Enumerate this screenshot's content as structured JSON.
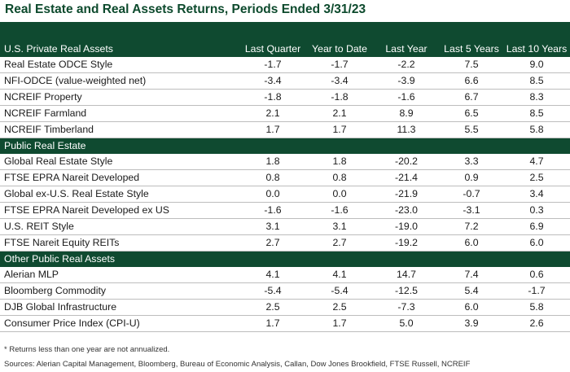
{
  "title": "Real Estate and Real Assets Returns, Periods Ended 3/31/23",
  "columns": [
    "Last Quarter",
    "Year to Date",
    "Last Year",
    "Last 5 Years",
    "Last 10 Years"
  ],
  "sections": [
    {
      "name": "U.S. Private Real Assets",
      "rows": [
        {
          "name": "Real Estate ODCE Style",
          "values": [
            "-1.7",
            "-1.7",
            "-2.2",
            "7.5",
            "9.0"
          ]
        },
        {
          "name": "NFI-ODCE (value-weighted net)",
          "values": [
            "-3.4",
            "-3.4",
            "-3.9",
            "6.6",
            "8.5"
          ]
        },
        {
          "name": "NCREIF Property",
          "values": [
            "-1.8",
            "-1.8",
            "-1.6",
            "6.7",
            "8.3"
          ]
        },
        {
          "name": "NCREIF Farmland",
          "values": [
            "2.1",
            "2.1",
            "8.9",
            "6.5",
            "8.5"
          ]
        },
        {
          "name": "NCREIF Timberland",
          "values": [
            "1.7",
            "1.7",
            "11.3",
            "5.5",
            "5.8"
          ]
        }
      ]
    },
    {
      "name": "Public Real Estate",
      "rows": [
        {
          "name": "Global Real Estate Style",
          "values": [
            "1.8",
            "1.8",
            "-20.2",
            "3.3",
            "4.7"
          ]
        },
        {
          "name": "FTSE EPRA Nareit Developed",
          "values": [
            "0.8",
            "0.8",
            "-21.4",
            "0.9",
            "2.5"
          ]
        },
        {
          "name": "Global ex-U.S. Real Estate Style",
          "values": [
            "0.0",
            "0.0",
            "-21.9",
            "-0.7",
            "3.4"
          ]
        },
        {
          "name": "FTSE EPRA Nareit Developed ex US",
          "values": [
            "-1.6",
            "-1.6",
            "-23.0",
            "-3.1",
            "0.3"
          ]
        },
        {
          "name": "U.S. REIT Style",
          "values": [
            "3.1",
            "3.1",
            "-19.0",
            "7.2",
            "6.9"
          ]
        },
        {
          "name": "FTSE Nareit Equity REITs",
          "values": [
            "2.7",
            "2.7",
            "-19.2",
            "6.0",
            "6.0"
          ]
        }
      ]
    },
    {
      "name": "Other Public Real Assets",
      "rows": [
        {
          "name": "Alerian MLP",
          "values": [
            "4.1",
            "4.1",
            "14.7",
            "7.4",
            "0.6"
          ]
        },
        {
          "name": "Bloomberg Commodity",
          "values": [
            "-5.4",
            "-5.4",
            "-12.5",
            "5.4",
            "-1.7"
          ]
        },
        {
          "name": "DJB Global Infrastructure",
          "values": [
            "2.5",
            "2.5",
            "-7.3",
            "6.0",
            "5.8"
          ]
        },
        {
          "name": "Consumer Price Index (CPI-U)",
          "values": [
            "1.7",
            "1.7",
            "5.0",
            "3.9",
            "2.6"
          ]
        }
      ]
    }
  ],
  "footnote": "* Returns less than one year are not annualized.",
  "sources": "Sources: Alerian Capital Management, Bloomberg, Bureau of Economic Analysis, Callan, Dow Jones Brookfield, FTSE Russell, NCREIF",
  "colors": {
    "header_bg": "#0f4a30",
    "title": "#0d4a2d"
  }
}
